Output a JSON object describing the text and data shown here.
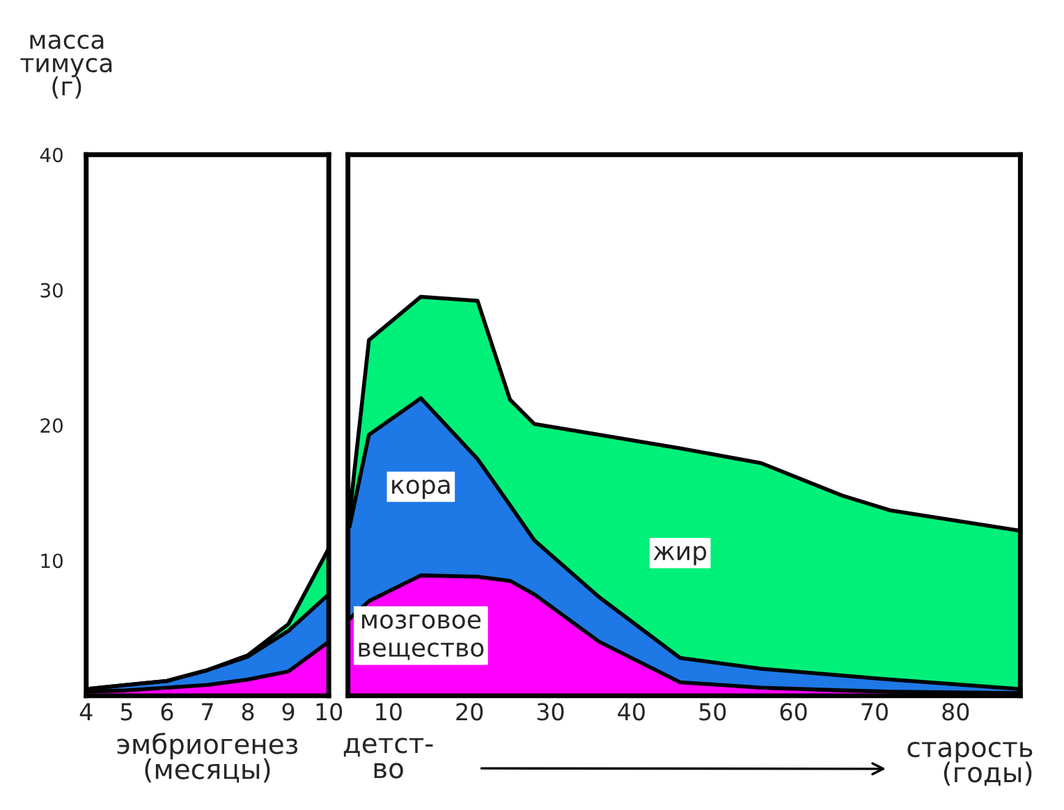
{
  "chart_data": [
    {
      "type": "area",
      "stacked": true,
      "ylabel": "масса\nтимуса\n(г)",
      "xlabel": "эмбриогенез\n(месяцы)",
      "x": [
        4,
        5,
        6,
        7,
        8,
        9,
        10
      ],
      "xlim": [
        4,
        10
      ],
      "xticks": [
        4,
        5,
        6,
        7,
        8,
        9,
        10
      ],
      "ylim": [
        0,
        40
      ],
      "yticks": [
        10,
        20,
        30,
        40
      ],
      "grid": false,
      "series": [
        {
          "color": "#ff00ff",
          "values": [
            0.3,
            0.4,
            0.6,
            0.8,
            1.2,
            1.8,
            4.0
          ]
        },
        {
          "color": "#1e78e6",
          "values": [
            0.2,
            0.4,
            0.5,
            1.1,
            1.7,
            3.0,
            3.5
          ]
        },
        {
          "color": "#00f07a",
          "values": [
            0,
            0,
            0,
            0,
            0.1,
            0.5,
            3.4
          ]
        }
      ]
    },
    {
      "type": "area",
      "stacked": true,
      "xlabel": "старость\n(годы)",
      "annotations": [
        "детст-\nво"
      ],
      "tick_labels": "x",
      "x": [
        5.2,
        7.6,
        14,
        21,
        25,
        28,
        36,
        46,
        56,
        66,
        72,
        88
      ],
      "xlim": [
        5,
        88
      ],
      "xticks": [
        10,
        20,
        30,
        40,
        50,
        60,
        70,
        80
      ],
      "ylim": [
        0,
        40
      ],
      "grid": false,
      "series": [
        {
          "name": "мозговое\nвещество",
          "color": "#ff00ff",
          "values": [
            5.7,
            7.0,
            8.9,
            8.8,
            8.5,
            7.5,
            4.0,
            1.0,
            0.6,
            0.4,
            0.3,
            0.2
          ]
        },
        {
          "name": "кора",
          "color": "#1e78e6",
          "values": [
            6.8,
            12.3,
            13.1,
            8.7,
            5.6,
            4.0,
            3.3,
            1.8,
            1.4,
            1.1,
            0.9,
            0.3
          ]
        },
        {
          "name": "жир",
          "color": "#00f07a",
          "values": [
            0.9,
            7.0,
            7.5,
            11.7,
            7.8,
            8.6,
            12.0,
            15.5,
            15.2,
            13.3,
            12.5,
            11.7
          ]
        }
      ]
    }
  ]
}
